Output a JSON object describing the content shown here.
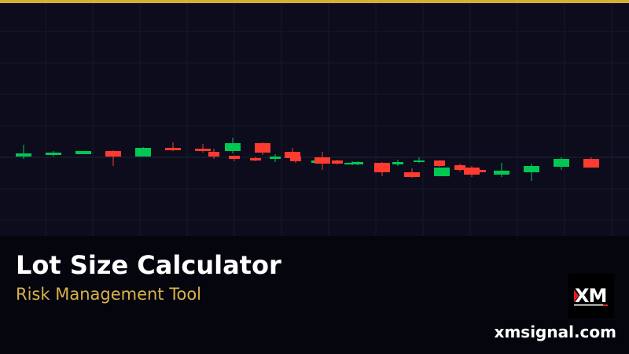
{
  "colors": {
    "accent": "#d4af37",
    "bullish": "#00c853",
    "bearish": "#ff3b30",
    "chart_background": "#0c0c1c",
    "gold_text": "#d9b24a"
  },
  "banner": {
    "title": "Lot Size Calculator",
    "subtitle": "Risk Management Tool",
    "logo_text": "XM",
    "website": "xmsignal.com"
  }
}
